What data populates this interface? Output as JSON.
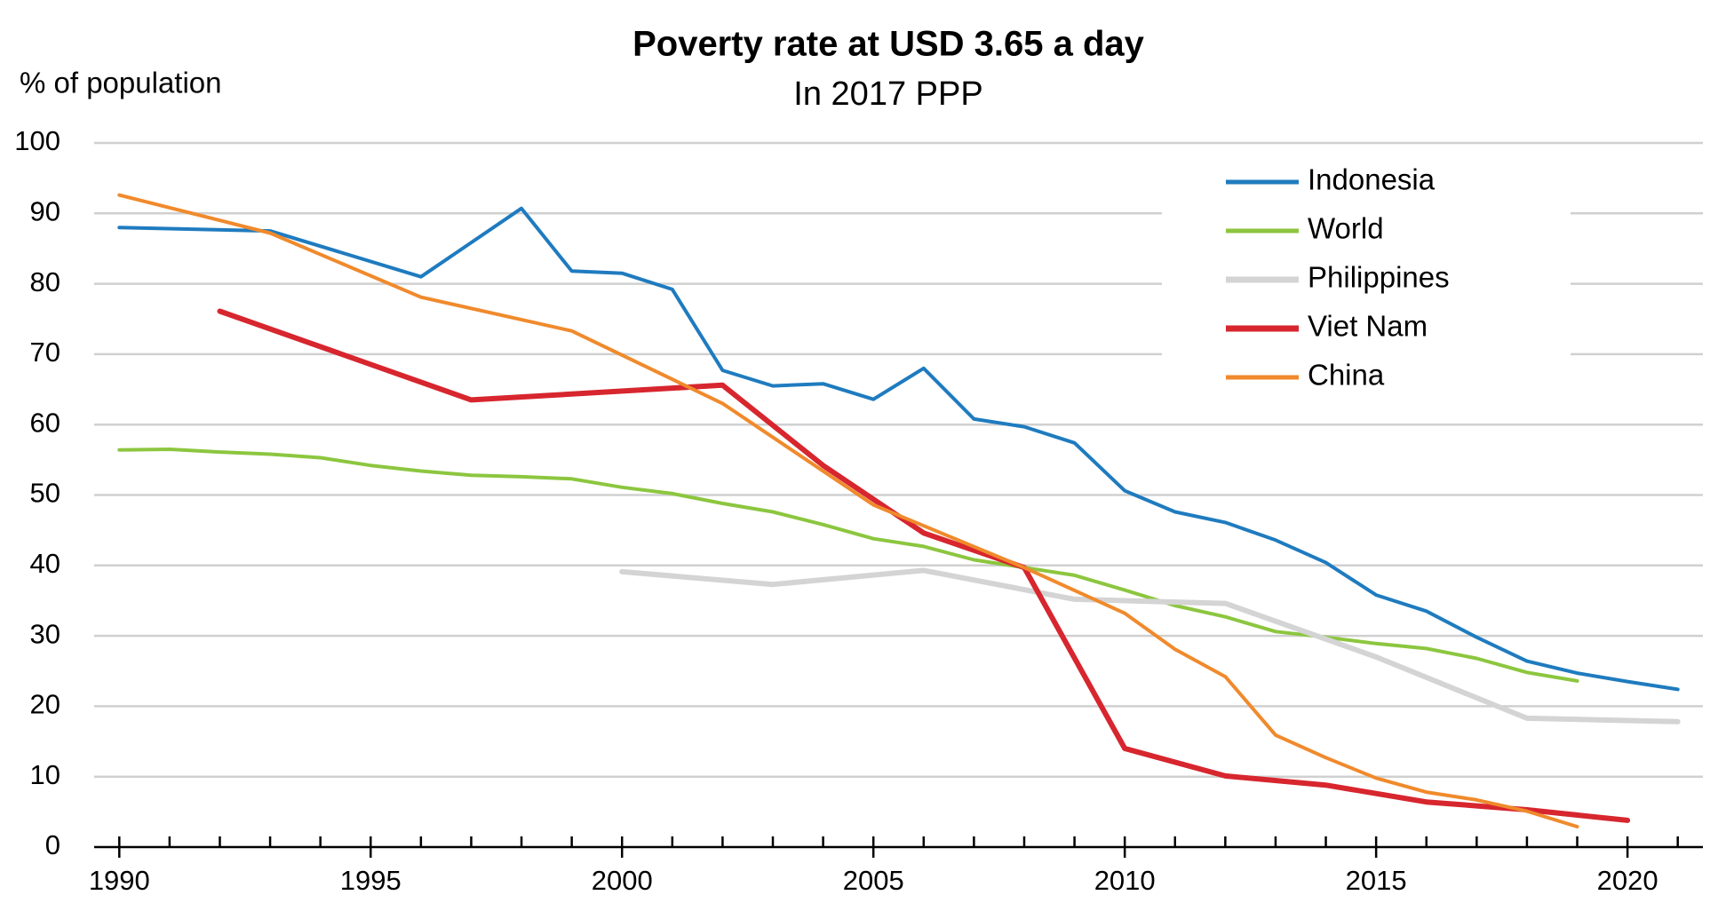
{
  "chart_data": {
    "type": "line",
    "title": "Poverty rate at USD 3.65 a day",
    "subtitle": "In 2017 PPP",
    "y_label": "% of population",
    "xlim": [
      1989.5,
      2021.5
    ],
    "xticks": [
      1990,
      1995,
      2000,
      2005,
      2010,
      2015,
      2020
    ],
    "ylim": [
      0,
      100
    ],
    "yticks": [
      0,
      10,
      20,
      30,
      40,
      50,
      60,
      70,
      80,
      90,
      100
    ],
    "grid": true,
    "legend": "top-right",
    "series": [
      {
        "name": "Indonesia",
        "color": "#1f7bbf",
        "line_width": 4,
        "x": [
          1990,
          1993,
          1996,
          1998,
          1999,
          2000,
          2001,
          2002,
          2003,
          2004,
          2005,
          2006,
          2007,
          2008,
          2009,
          2010,
          2011,
          2012,
          2013,
          2014,
          2015,
          2016,
          2017,
          2018,
          2019,
          2020,
          2021
        ],
        "values": [
          88,
          87.5,
          81,
          90.7,
          81.8,
          81.5,
          79.2,
          67.7,
          65.5,
          65.8,
          63.6,
          68,
          60.8,
          59.7,
          57.4,
          50.6,
          47.6,
          46.1,
          43.6,
          40.4,
          35.8,
          33.5,
          29.8,
          26.4,
          24.7,
          23.5,
          22.4
        ]
      },
      {
        "name": "World",
        "color": "#8cc63f",
        "line_width": 4,
        "x": [
          1990,
          1991,
          1992,
          1993,
          1994,
          1995,
          1996,
          1997,
          1998,
          1999,
          2000,
          2001,
          2002,
          2003,
          2004,
          2005,
          2006,
          2007,
          2008,
          2009,
          2010,
          2011,
          2012,
          2013,
          2014,
          2015,
          2016,
          2017,
          2018,
          2019
        ],
        "values": [
          56.4,
          56.5,
          56.1,
          55.8,
          55.3,
          54.2,
          53.4,
          52.8,
          52.6,
          52.3,
          51.1,
          50.2,
          48.8,
          47.6,
          45.8,
          43.8,
          42.7,
          40.8,
          39.7,
          38.6,
          36.5,
          34.3,
          32.7,
          30.6,
          29.8,
          28.9,
          28.2,
          26.8,
          24.8,
          23.6
        ]
      },
      {
        "name": "Philippines",
        "color": "#d4d4d4",
        "line_width": 6,
        "x": [
          2000,
          2003,
          2006,
          2009,
          2012,
          2015,
          2018,
          2021
        ],
        "values": [
          39.1,
          37.3,
          39.3,
          35.2,
          34.6,
          27.0,
          18.3,
          17.8
        ]
      },
      {
        "name": "Viet Nam",
        "color": "#d7262e",
        "line_width": 6,
        "x": [
          1992,
          1997,
          2002,
          2004,
          2006,
          2008,
          2010,
          2012,
          2014,
          2016,
          2018,
          2020
        ],
        "values": [
          76.1,
          63.5,
          65.6,
          54.2,
          44.6,
          39.7,
          14.0,
          10.1,
          8.8,
          6.4,
          5.3,
          3.8
        ]
      },
      {
        "name": "China",
        "color": "#f08a2c",
        "line_width": 4,
        "x": [
          1990,
          1993,
          1996,
          1999,
          2002,
          2005,
          2008,
          2010,
          2011,
          2012,
          2013,
          2014,
          2015,
          2016,
          2017,
          2018,
          2019
        ],
        "values": [
          92.6,
          87.2,
          78.1,
          73.3,
          63.0,
          48.6,
          39.7,
          33.2,
          28.1,
          24.2,
          15.9,
          12.7,
          9.8,
          7.8,
          6.7,
          5.1,
          2.9
        ]
      }
    ]
  }
}
